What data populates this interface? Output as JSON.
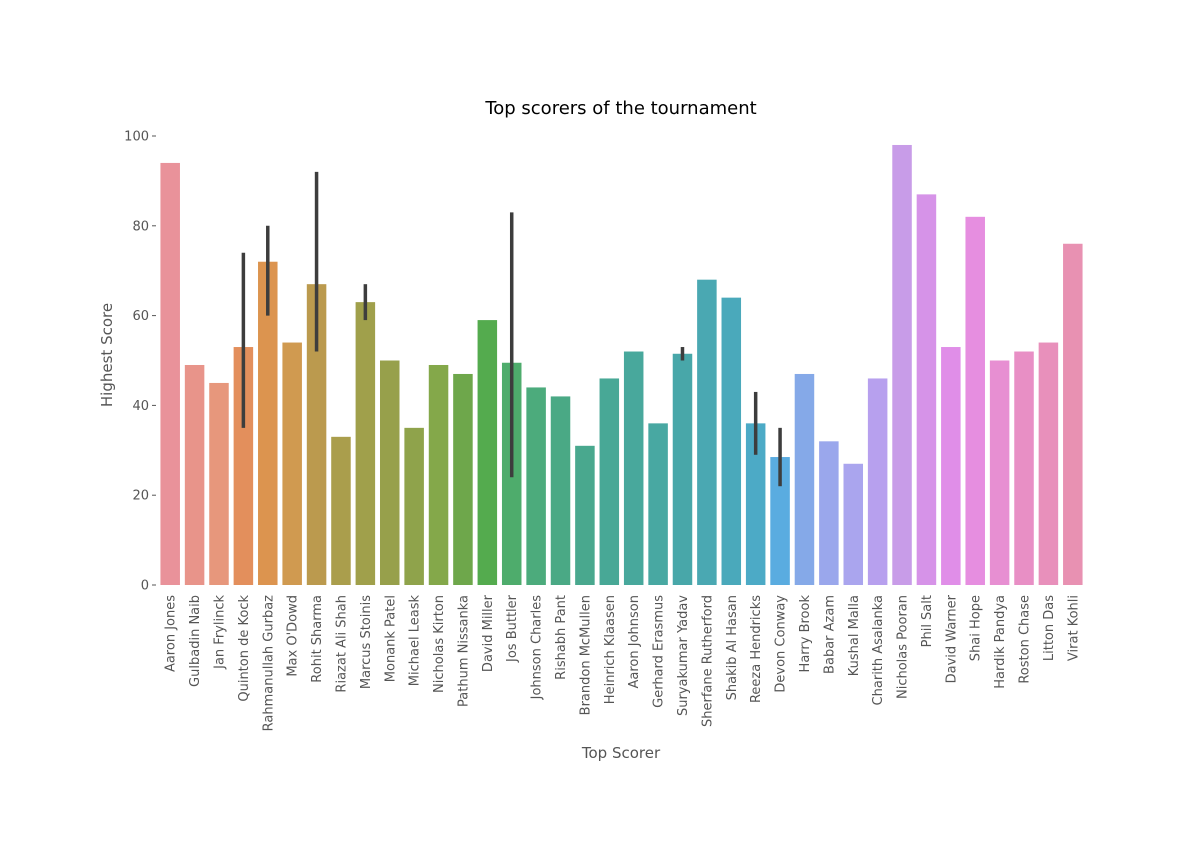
{
  "chart_data": {
    "type": "bar",
    "title": "Top scorers of the tournament",
    "xlabel": "Top Scorer",
    "ylabel": "Highest Score",
    "ylim": [
      0,
      100
    ],
    "yticks": [
      0,
      20,
      40,
      60,
      80,
      100
    ],
    "grid": false,
    "legend": "none",
    "bars": [
      {
        "label": "Aaron Jones",
        "value": 94,
        "color": "#e9929a"
      },
      {
        "label": "Gulbadin Naib",
        "value": 49,
        "color": "#e8948a"
      },
      {
        "label": "Jan Frylinck",
        "value": 45,
        "color": "#e7977c"
      },
      {
        "label": "Quinton de Kock",
        "value": 53,
        "color": "#e38f5c",
        "err": [
          35,
          74
        ]
      },
      {
        "label": "Rahmanullah Gurbaz",
        "value": 72,
        "color": "#dc944f",
        "err": [
          60,
          80
        ]
      },
      {
        "label": "Max O'Dowd",
        "value": 54,
        "color": "#d09a50",
        "err": null
      },
      {
        "label": "Rohit Sharma",
        "value": 67,
        "color": "#bb9a4e",
        "err": [
          52,
          92
        ]
      },
      {
        "label": "Riazat Ali Shah",
        "value": 33,
        "color": "#aa9e4c"
      },
      {
        "label": "Marcus Stoinis",
        "value": 63,
        "color": "#a0a04b",
        "err": [
          59,
          67
        ]
      },
      {
        "label": "Monank Patel",
        "value": 50,
        "color": "#97a04b"
      },
      {
        "label": "Michael Leask",
        "value": 35,
        "color": "#8fa34b"
      },
      {
        "label": "Nicholas Kirton",
        "value": 49,
        "color": "#84a84a"
      },
      {
        "label": "Pathum Nissanka",
        "value": 47,
        "color": "#6ea74b"
      },
      {
        "label": "David Miller",
        "value": 59,
        "color": "#54ab4e"
      },
      {
        "label": "Jos Buttler",
        "value": 49.5,
        "color": "#4eac6c",
        "err": [
          24,
          83
        ]
      },
      {
        "label": "Johnson Charles",
        "value": 44,
        "color": "#4cab7c"
      },
      {
        "label": "Rishabh Pant",
        "value": 42,
        "color": "#4aa985"
      },
      {
        "label": "Brandon McMullen",
        "value": 31,
        "color": "#49a88e"
      },
      {
        "label": "Heinrich Klaasen",
        "value": 46,
        "color": "#48a896"
      },
      {
        "label": "Aaron Johnson",
        "value": 52,
        "color": "#48a89c"
      },
      {
        "label": "Gerhard Erasmus",
        "value": 36,
        "color": "#48a8a2"
      },
      {
        "label": "Suryakumar Yadav",
        "value": 51.5,
        "color": "#48a7a9",
        "err": [
          50,
          53
        ]
      },
      {
        "label": "Sherfane Rutherford",
        "value": 68,
        "color": "#4aa8b2"
      },
      {
        "label": "Shakib Al Hasan",
        "value": 64,
        "color": "#4aa9bb"
      },
      {
        "label": "Reeza Hendricks",
        "value": 36,
        "color": "#4caac6",
        "err": [
          29,
          43
        ]
      },
      {
        "label": "Devon Conway",
        "value": 28.5,
        "color": "#5aace0",
        "err": [
          22,
          35
        ]
      },
      {
        "label": "Harry Brook",
        "value": 47,
        "color": "#85a9e8"
      },
      {
        "label": "Babar Azam",
        "value": 32,
        "color": "#9aa7ec"
      },
      {
        "label": "Kushal Malla",
        "value": 27,
        "color": "#aaa5ee"
      },
      {
        "label": "Charith Asalanka",
        "value": 46,
        "color": "#b7a0ee"
      },
      {
        "label": "Nicholas Pooran",
        "value": 98,
        "color": "#c89ce8"
      },
      {
        "label": "Phil Salt",
        "value": 87,
        "color": "#d693e8"
      },
      {
        "label": "David Warner",
        "value": 53,
        "color": "#e08ee8"
      },
      {
        "label": "Shai Hope",
        "value": 82,
        "color": "#e68ee0"
      },
      {
        "label": "Hardik Pandya",
        "value": 50,
        "color": "#e78fd2"
      },
      {
        "label": "Roston Chase",
        "value": 52,
        "color": "#e88fc5"
      },
      {
        "label": "Litton Das",
        "value": 54,
        "color": "#e890bb"
      },
      {
        "label": "Virat Kohli",
        "value": 76,
        "color": "#e891b2"
      }
    ]
  }
}
